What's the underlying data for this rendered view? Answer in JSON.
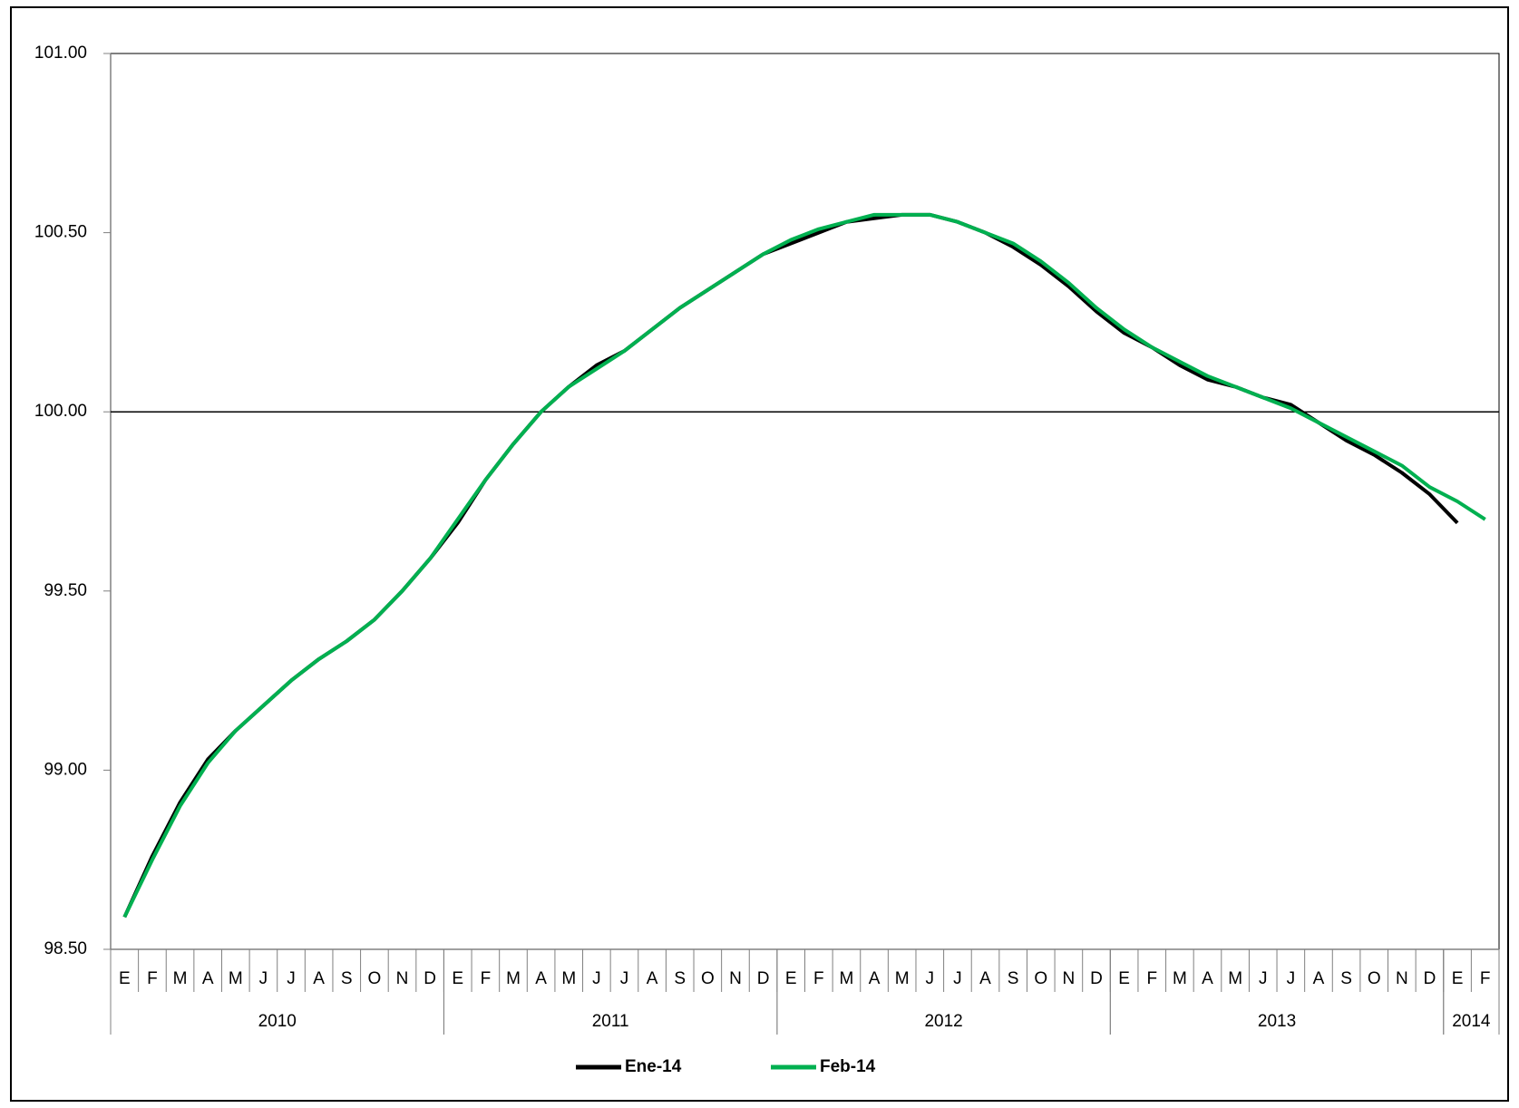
{
  "chart_data": {
    "type": "line",
    "categories": [
      "E",
      "F",
      "M",
      "A",
      "M",
      "J",
      "J",
      "A",
      "S",
      "O",
      "N",
      "D",
      "E",
      "F",
      "M",
      "A",
      "M",
      "J",
      "J",
      "A",
      "S",
      "O",
      "N",
      "D",
      "E",
      "F",
      "M",
      "A",
      "M",
      "J",
      "J",
      "A",
      "S",
      "O",
      "N",
      "D",
      "E",
      "F",
      "M",
      "A",
      "M",
      "J",
      "J",
      "A",
      "S",
      "O",
      "N",
      "D",
      "E",
      "F"
    ],
    "year_groups": [
      {
        "label": "2010",
        "count": 12
      },
      {
        "label": "2011",
        "count": 12
      },
      {
        "label": "2012",
        "count": 12
      },
      {
        "label": "2013",
        "count": 12
      },
      {
        "label": "2014",
        "count": 2
      }
    ],
    "series": [
      {
        "name": "Ene-14",
        "color": "#000000",
        "values": [
          98.59,
          98.76,
          98.91,
          99.03,
          99.11,
          99.18,
          99.25,
          99.31,
          99.36,
          99.42,
          99.5,
          99.59,
          99.69,
          99.81,
          99.91,
          100.0,
          100.07,
          100.13,
          100.17,
          100.23,
          100.29,
          100.34,
          100.39,
          100.44,
          100.47,
          100.5,
          100.53,
          100.54,
          100.55,
          100.55,
          100.53,
          100.5,
          100.46,
          100.41,
          100.35,
          100.28,
          100.22,
          100.18,
          100.13,
          100.09,
          100.07,
          100.04,
          100.02,
          99.97,
          99.92,
          99.88,
          99.83,
          99.77,
          99.69,
          null
        ]
      },
      {
        "name": "Feb-14",
        "color": "#00b050",
        "values": [
          98.59,
          98.75,
          98.9,
          99.02,
          99.11,
          99.18,
          99.25,
          99.31,
          99.36,
          99.42,
          99.5,
          99.59,
          99.7,
          99.81,
          99.91,
          100.0,
          100.07,
          100.12,
          100.17,
          100.23,
          100.29,
          100.34,
          100.39,
          100.44,
          100.48,
          100.51,
          100.53,
          100.55,
          100.55,
          100.55,
          100.53,
          100.5,
          100.47,
          100.42,
          100.36,
          100.29,
          100.23,
          100.18,
          100.14,
          100.1,
          100.07,
          100.04,
          100.01,
          99.97,
          99.93,
          99.89,
          99.85,
          99.79,
          99.75,
          99.7
        ]
      }
    ],
    "ylim": [
      98.5,
      101
    ],
    "yticks": [
      {
        "value": 98.5,
        "label": "98.50"
      },
      {
        "value": 99,
        "label": "99.00"
      },
      {
        "value": 99.5,
        "label": "99.50"
      },
      {
        "value": 100,
        "label": "100.00"
      },
      {
        "value": 100.5,
        "label": "100.50"
      },
      {
        "value": 101,
        "label": "101.00"
      }
    ],
    "hline": 100,
    "legend": "bottom"
  }
}
